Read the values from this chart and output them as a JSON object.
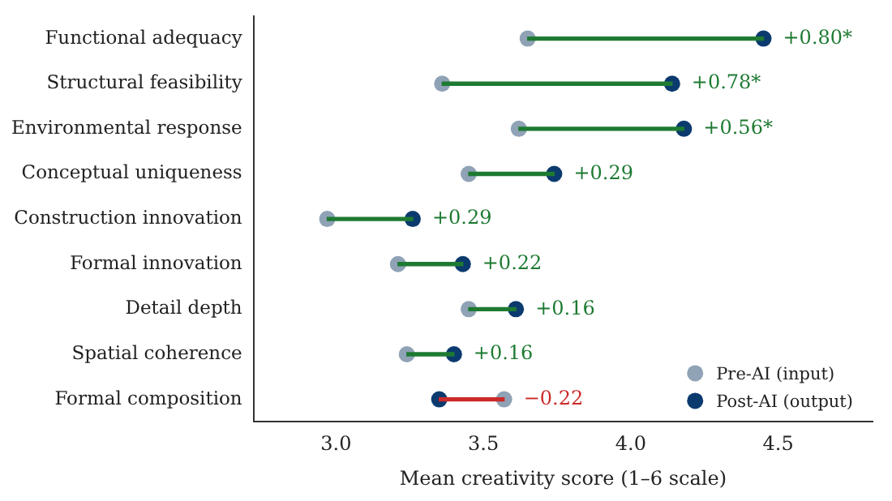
{
  "chart_data": {
    "type": "scatter",
    "orientation": "horizontal",
    "xlabel": "Mean creativity score (1–6 scale)",
    "categories": [
      "Functional adequacy",
      "Structural feasibility",
      "Environmental response",
      "Conceptual uniqueness",
      "Construction innovation",
      "Formal innovation",
      "Detail depth",
      "Spatial coherence",
      "Formal composition"
    ],
    "series": [
      {
        "type": "bar",
        "base": [
          3.65,
          3.36,
          3.62,
          3.45,
          2.97,
          3.21,
          3.45,
          3.24,
          3.57
        ],
        "values": [
          0.8,
          0.78,
          0.56,
          0.29,
          0.29,
          0.22,
          0.16,
          0.16,
          -0.22
        ],
        "colors": [
          "#1e7a32",
          "#1e7a32",
          "#1e7a32",
          "#1e7a32",
          "#1e7a32",
          "#1e7a32",
          "#1e7a32",
          "#1e7a32",
          "#cc2a2a"
        ],
        "value_labels": [
          "+0.80*",
          "+0.78*",
          "+0.56*",
          "+0.29",
          "+0.29",
          "+0.22",
          "+0.16",
          "+0.16",
          "−0.22"
        ]
      },
      {
        "name": "Pre-AI (input)",
        "color": "#8fa2b6",
        "values": [
          3.65,
          3.36,
          3.62,
          3.45,
          2.97,
          3.21,
          3.45,
          3.24,
          3.57
        ]
      },
      {
        "name": "Post-AI (output)",
        "color": "#0b3a6e",
        "values": [
          4.45,
          4.14,
          4.18,
          3.74,
          3.26,
          3.43,
          3.61,
          3.4,
          3.35
        ]
      }
    ],
    "xlim": [
      2.72,
      4.82
    ],
    "xticks": [
      {
        "value": 3,
        "label": "3.0"
      },
      {
        "value": 3.5,
        "label": "3.5"
      },
      {
        "value": 4,
        "label": "4.0"
      },
      {
        "value": 4.5,
        "label": "4.5"
      }
    ],
    "grid": false,
    "legend": "bottom right",
    "marker": "circle"
  }
}
